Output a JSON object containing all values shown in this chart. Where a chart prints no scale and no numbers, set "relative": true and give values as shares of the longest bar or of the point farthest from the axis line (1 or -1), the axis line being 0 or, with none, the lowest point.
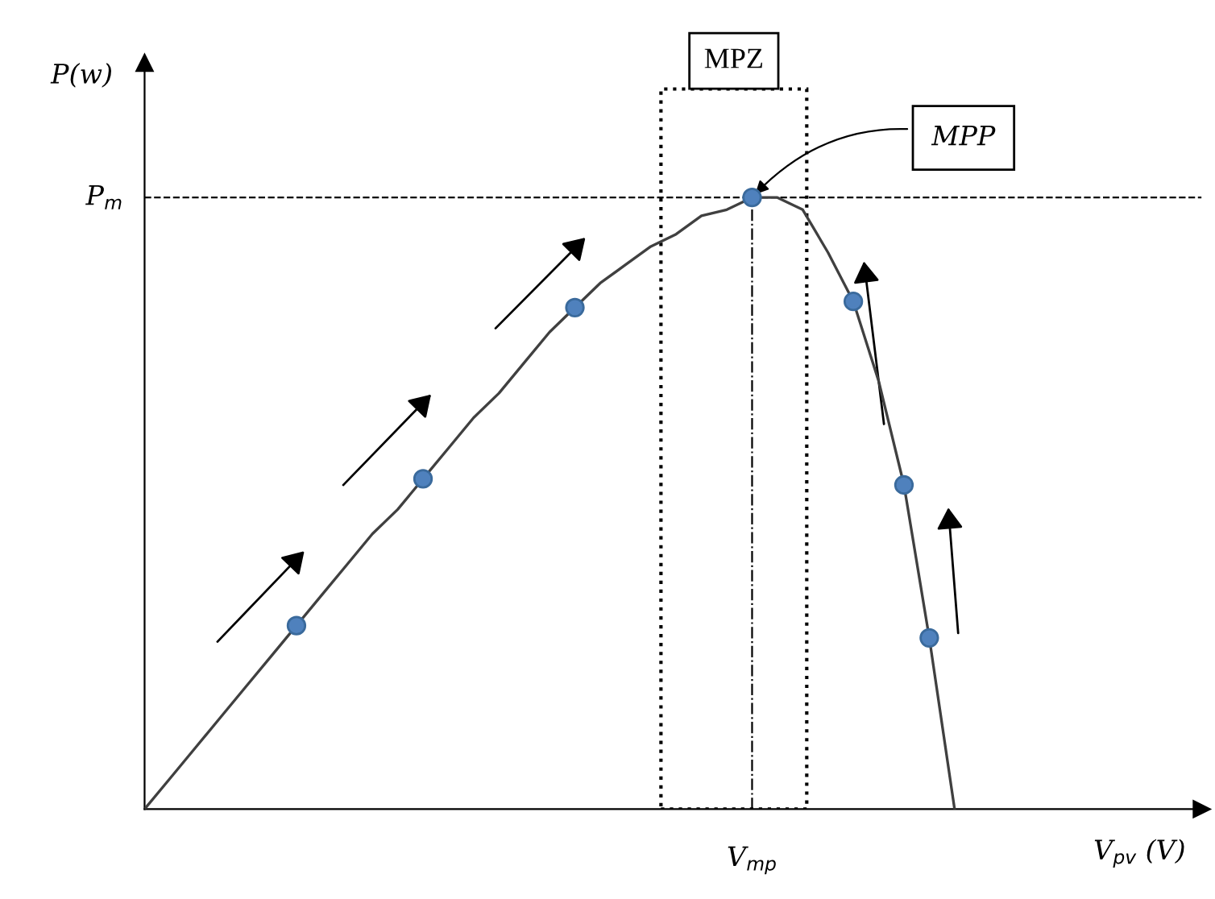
{
  "chart_data": {
    "type": "line",
    "relative": true,
    "xlabel": "V$_{pv}$ (V)",
    "ylabel": "P(w)",
    "categories": [
      null,
      null,
      null,
      null,
      null,
      null,
      null,
      null,
      null,
      null,
      null,
      null,
      null,
      null,
      null,
      null,
      null,
      null,
      null,
      null,
      null,
      null,
      null,
      null,
      null,
      null,
      null,
      null,
      null,
      null,
      null,
      null,
      null
    ],
    "series": [
      {
        "color": "#404040",
        "values": [
          0,
          0.05,
          0.1,
          0.15,
          0.2,
          0.25,
          0.3,
          0.35,
          0.4,
          0.45,
          0.49,
          0.54,
          0.59,
          0.64,
          0.68,
          0.73,
          0.78,
          0.82,
          0.86,
          0.89,
          0.92,
          0.94,
          0.97,
          0.98,
          1,
          1,
          0.98,
          0.91,
          0.83,
          0.7,
          0.53,
          0.28,
          0
        ]
      }
    ],
    "ref_lines": [
      {
        "axis": "y",
        "value": 1,
        "label": "P$_{m}$",
        "line_style": "dashed"
      }
    ],
    "annotations": [
      "MPP",
      "MPZ",
      "V$_{mp}$"
    ],
    "legend": false
  }
}
